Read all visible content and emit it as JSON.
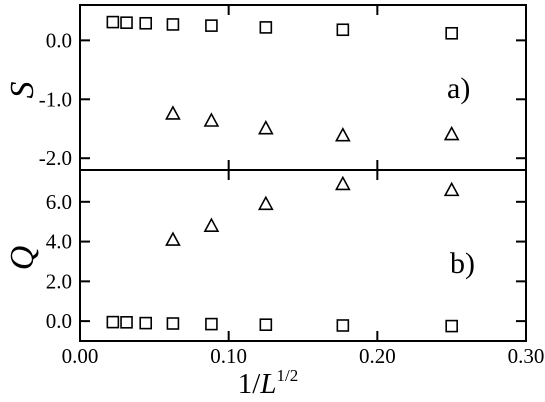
{
  "chart_data": [
    {
      "type": "scatter",
      "panel_label": "a)",
      "ylabel": "S",
      "xlim": [
        0.0,
        0.3
      ],
      "ylim": [
        -2.2,
        0.6
      ],
      "yticks": [
        -2.0,
        -1.0,
        0.0
      ],
      "ytick_labels": [
        "-2.0",
        "-1.0",
        "0.0"
      ],
      "series": [
        {
          "marker": "square",
          "x": [
            0.0221,
            0.0313,
            0.0442,
            0.0625,
            0.0884,
            0.125,
            0.1768,
            0.25
          ],
          "y": [
            0.31,
            0.3,
            0.29,
            0.27,
            0.25,
            0.22,
            0.18,
            0.12
          ]
        },
        {
          "marker": "triangle",
          "x": [
            0.0625,
            0.0884,
            0.125,
            0.1768,
            0.25
          ],
          "y": [
            -1.24,
            -1.36,
            -1.49,
            -1.61,
            -1.59
          ]
        }
      ]
    },
    {
      "type": "scatter",
      "panel_label": "b)",
      "ylabel": "Q",
      "xlabel_main": "1/",
      "xlabel_var": "L",
      "xlabel_sup": "1/2",
      "xlim": [
        0.0,
        0.3
      ],
      "ylim": [
        -1.0,
        7.6
      ],
      "yticks": [
        0.0,
        2.0,
        4.0,
        6.0
      ],
      "ytick_labels": [
        "0.0",
        "2.0",
        "4.0",
        "6.0"
      ],
      "xticks": [
        0.0,
        0.1,
        0.2,
        0.3
      ],
      "xtick_labels": [
        "0.00",
        "0.10",
        "0.20",
        "0.30"
      ],
      "series": [
        {
          "marker": "square",
          "x": [
            0.0221,
            0.0313,
            0.0442,
            0.0625,
            0.0884,
            0.125,
            0.1768,
            0.25
          ],
          "y": [
            -0.05,
            -0.06,
            -0.1,
            -0.12,
            -0.15,
            -0.18,
            -0.22,
            -0.25
          ]
        },
        {
          "marker": "triangle",
          "x": [
            0.0625,
            0.0884,
            0.125,
            0.1768,
            0.25
          ],
          "y": [
            4.1,
            4.8,
            5.9,
            6.9,
            6.6
          ]
        }
      ]
    }
  ]
}
